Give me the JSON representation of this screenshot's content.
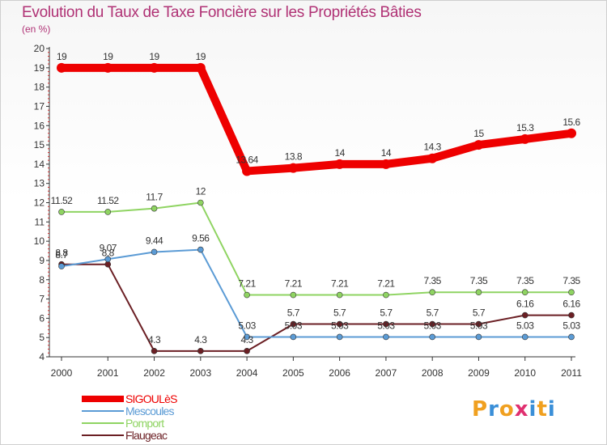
{
  "page": {
    "title": "Evolution du Taux de Taxe Foncière sur les Propriétés Bâties",
    "subtitle": "(en %)",
    "logo": {
      "letters": [
        "P",
        "r",
        "o",
        "x",
        "i",
        "t",
        "i"
      ],
      "colors": [
        "#f0a020",
        "#3a8fd8",
        "#f0a020",
        "#e03070",
        "#3a8fd8",
        "#f0a020",
        "#3a8fd8"
      ]
    }
  },
  "chart_data": {
    "type": "line",
    "title": "Evolution du Taux de Taxe Foncière sur les Propriétés Bâties",
    "ylabel": "(en %)",
    "x": [
      "2000",
      "2001",
      "2002",
      "2003",
      "2004",
      "2005",
      "2006",
      "2007",
      "2008",
      "2009",
      "2010",
      "2011"
    ],
    "ylim": [
      4,
      20
    ],
    "yticks": [
      "4",
      "5",
      "6",
      "7",
      "8",
      "9",
      "10",
      "11",
      "12",
      "13",
      "14",
      "15",
      "16",
      "17",
      "18",
      "19",
      "20"
    ],
    "series": [
      {
        "name": "Flaugeac",
        "color": "#6b1f24",
        "values": [
          8.8,
          8.8,
          4.3,
          4.3,
          4.3,
          5.7,
          5.7,
          5.7,
          5.7,
          5.7,
          6.16,
          6.16
        ],
        "labels": [
          "8.8",
          "8.8",
          "4.3",
          "4.3",
          "4.3",
          "5.7",
          "5.7",
          "5.7",
          "5.7",
          "5.7",
          "6.16",
          "6.16"
        ]
      },
      {
        "name": "Mescoules",
        "color": "#5b9bd5",
        "values": [
          8.7,
          9.07,
          9.44,
          9.56,
          5.03,
          5.03,
          5.03,
          5.03,
          5.03,
          5.03,
          5.03,
          5.03
        ],
        "labels": [
          "8.7",
          "9.07",
          "9.44",
          "9.56",
          "5.03",
          "5.03",
          "5.03",
          "5.03",
          "5.03",
          "5.03",
          "5.03",
          "5.03"
        ]
      },
      {
        "name": "Pomport",
        "color": "#8fd462",
        "values": [
          11.52,
          11.52,
          11.7,
          12,
          7.21,
          7.21,
          7.21,
          7.21,
          7.35,
          7.35,
          7.35,
          7.35
        ],
        "labels": [
          "11.52",
          "11.52",
          "11.7",
          "12",
          "7.21",
          "7.21",
          "7.21",
          "7.21",
          "7.35",
          "7.35",
          "7.35",
          "7.35"
        ]
      },
      {
        "name": "SIGOULèS",
        "color": "#ee0000",
        "values": [
          19,
          19,
          19,
          19,
          13.64,
          13.8,
          14,
          14,
          14.3,
          15,
          15.3,
          15.6
        ],
        "labels": [
          "19",
          "19",
          "19",
          "19",
          "13.64",
          "13.8",
          "14",
          "14",
          "14.3",
          "15",
          "15.3",
          "15.6"
        ]
      }
    ],
    "legend": [
      "SIGOULèS",
      "Mescoules",
      "Pomport",
      "Flaugeac"
    ]
  }
}
